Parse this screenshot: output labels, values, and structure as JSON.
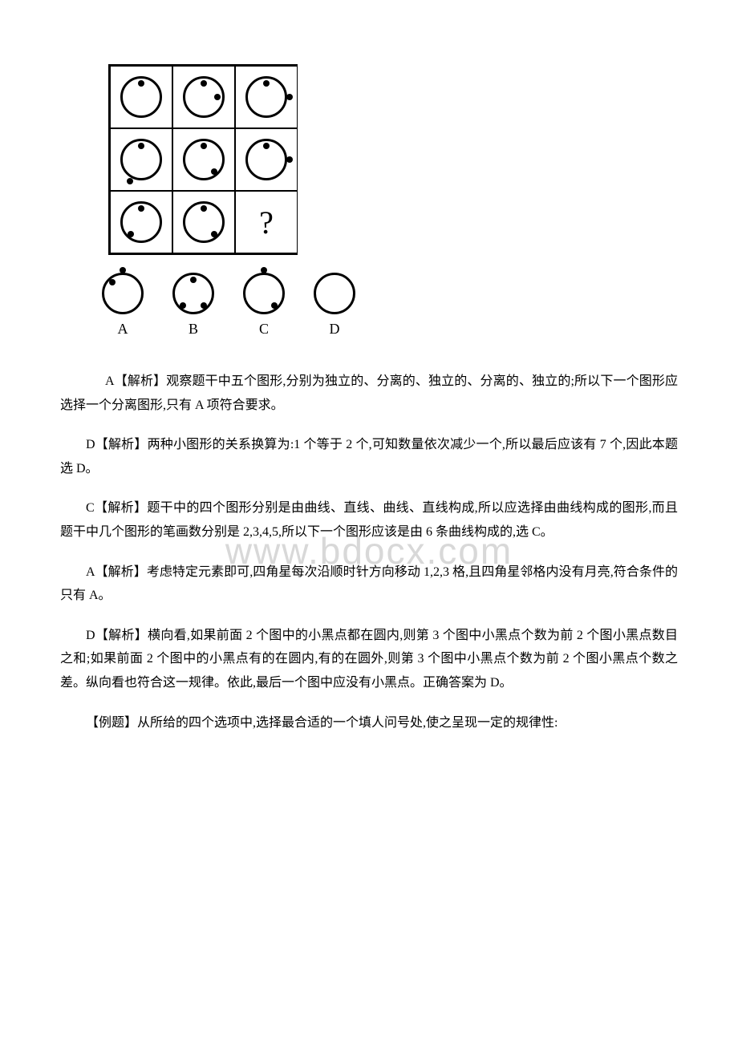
{
  "watermark": "www.bdocx.com",
  "figure": {
    "question_mark": "?",
    "grid": [
      {
        "dots": [
          "inside-top"
        ]
      },
      {
        "dots": [
          "inside-top",
          "inside-right"
        ]
      },
      {
        "dots": [
          "inside-top",
          "outside-right"
        ]
      },
      {
        "dots": [
          "inside-top",
          "outside-bottom-left"
        ]
      },
      {
        "dots": [
          "inside-top",
          "inside-bottom-right"
        ]
      },
      {
        "dots": [
          "inside-top",
          "outside-right"
        ]
      },
      {
        "dots": [
          "inside-top",
          "inside-bottom-left"
        ]
      },
      {
        "dots": [
          "inside-top",
          "inside-bottom-right"
        ]
      }
    ],
    "options": {
      "A": {
        "dots": [
          "outside-top",
          "inside-topleft"
        ]
      },
      "B": {
        "dots": [
          "inside-top",
          "inside-bottom-left",
          "inside-bottom-right"
        ]
      },
      "C": {
        "dots": [
          "outside-top",
          "inside-bottom-right"
        ]
      },
      "D": {
        "dots": []
      }
    }
  },
  "paragraphs": {
    "p1": "A【解析】观察题干中五个图形,分别为独立的、分离的、独立的、分离的、独立的;所以下一个图形应选择一个分离图形,只有 A 项符合要求。",
    "p2": "D【解析】两种小图形的关系换算为:1 个等于 2 个,可知数量依次减少一个,所以最后应该有 7 个,因此本题选 D。",
    "p3": "C【解析】题干中的四个图形分别是由曲线、直线、曲线、直线构成,所以应选择由曲线构成的图形,而且题干中几个图形的笔画数分别是 2,3,4,5,所以下一个图形应该是由 6 条曲线构成的,选 C。",
    "p4": "A【解析】考虑特定元素即可,四角星每次沿顺时针方向移动 1,2,3 格,且四角星邻格内没有月亮,符合条件的只有 A。",
    "p5": "D【解析】横向看,如果前面 2 个图中的小黑点都在圆内,则第 3 个图中小黑点个数为前 2 个图小黑点数目之和;如果前面 2 个图中的小黑点有的在圆内,有的在圆外,则第 3 个图中小黑点个数为前 2 个图小黑点个数之差。纵向看也符合这一规律。依此,最后一个图中应没有小黑点。正确答案为 D。",
    "p6": "【例题】从所给的四个选项中,选择最合适的一个填人问号处,使之呈现一定的规律性:"
  },
  "option_labels": {
    "A": "A",
    "B": "B",
    "C": "C",
    "D": "D"
  }
}
